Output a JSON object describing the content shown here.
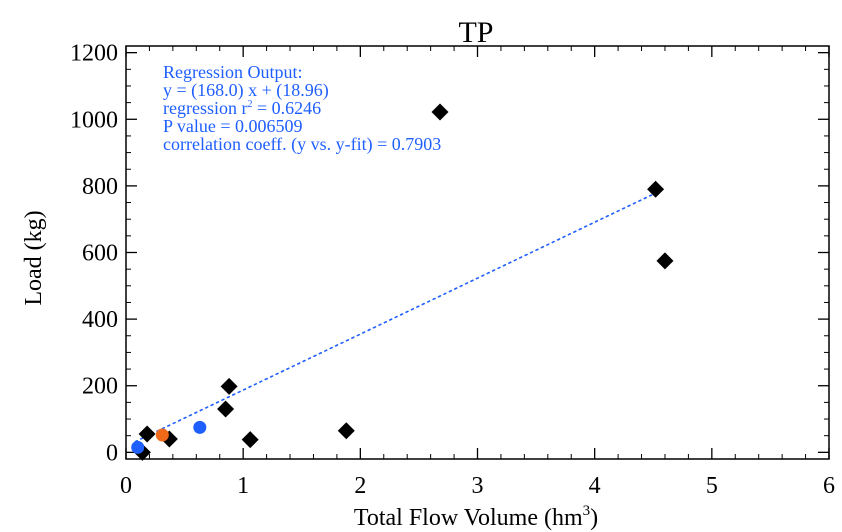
{
  "chart_data": {
    "type": "scatter",
    "title": "TP",
    "xlabel": "Total Flow Volume (hm",
    "xlabel_sup": "3",
    "xlabel_close": ")",
    "ylabel": "Load (kg)",
    "xlim": [
      0,
      6
    ],
    "ylim": [
      -20,
      1220
    ],
    "xticks": [
      0,
      1,
      2,
      3,
      4,
      5,
      6
    ],
    "yticks": [
      0,
      200,
      400,
      600,
      800,
      1000,
      1200
    ],
    "series": [
      {
        "marker": "diamond",
        "color": "#000000",
        "points": [
          {
            "x": 0.14,
            "y": 0
          },
          {
            "x": 0.18,
            "y": 55
          },
          {
            "x": 0.37,
            "y": 40
          },
          {
            "x": 0.85,
            "y": 130
          },
          {
            "x": 0.88,
            "y": 198
          },
          {
            "x": 1.06,
            "y": 38
          },
          {
            "x": 1.88,
            "y": 65
          },
          {
            "x": 2.68,
            "y": 1022
          },
          {
            "x": 4.52,
            "y": 790
          },
          {
            "x": 4.6,
            "y": 575
          }
        ]
      },
      {
        "marker": "circle",
        "color": "#1f5fff",
        "points": [
          {
            "x": 0.1,
            "y": 15
          },
          {
            "x": 0.63,
            "y": 75
          }
        ]
      },
      {
        "marker": "circle",
        "color": "#f06a1a",
        "points": [
          {
            "x": 0.31,
            "y": 52
          }
        ]
      }
    ],
    "regression": {
      "slope": 168.0,
      "intercept": 18.96,
      "x_range": [
        0.08,
        4.55
      ],
      "color": "#1f5fff",
      "style": "dotted"
    },
    "annotation": {
      "color": "#1f5fff",
      "lines": [
        {
          "text": "Regression Output:"
        },
        {
          "text": "y = (168.0) x + (18.96)"
        },
        {
          "text": "regression r",
          "sup": "2",
          "rest": " = 0.6246"
        },
        {
          "text": "P value = 0.006509"
        },
        {
          "text": "correlation coeff. (y vs. y-fit) = 0.7903"
        }
      ]
    },
    "grid": false
  }
}
